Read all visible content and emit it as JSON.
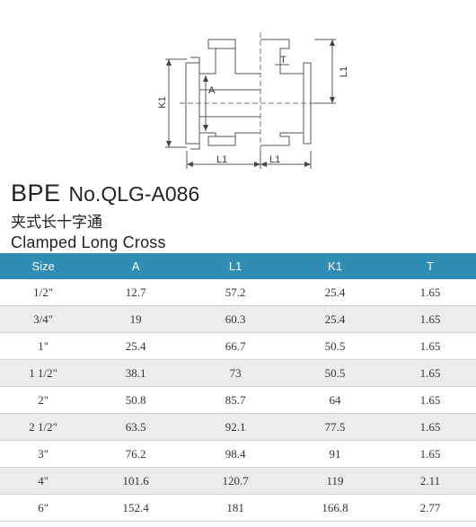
{
  "drawing": {
    "dim_labels": {
      "k1": "K1",
      "a": "A",
      "t": "T",
      "l1_right": "L1",
      "l1_bottom_left": "L1",
      "l1_bottom_right": "L1"
    }
  },
  "title": {
    "brand": "BPE",
    "model": "No.QLG-A086",
    "name_cn": "夹式长十字通",
    "name_en": "Clamped Long Cross"
  },
  "table": {
    "headers": [
      "Size",
      "A",
      "L1",
      "K1",
      "T"
    ],
    "rows": [
      [
        "1/2\"",
        "12.7",
        "57.2",
        "25.4",
        "1.65"
      ],
      [
        "3/4\"",
        "19",
        "60.3",
        "25.4",
        "1.65"
      ],
      [
        "1\"",
        "25.4",
        "66.7",
        "50.5",
        "1.65"
      ],
      [
        "1 1/2\"",
        "38.1",
        "73",
        "50.5",
        "1.65"
      ],
      [
        "2\"",
        "50.8",
        "85.7",
        "64",
        "1.65"
      ],
      [
        "2 1/2\"",
        "63.5",
        "92.1",
        "77.5",
        "1.65"
      ],
      [
        "3\"",
        "76.2",
        "98.4",
        "91",
        "1.65"
      ],
      [
        "4\"",
        "101.6",
        "120.7",
        "119",
        "2.11"
      ],
      [
        "6\"",
        "152.4",
        "181",
        "166.8",
        "2.77"
      ]
    ]
  }
}
